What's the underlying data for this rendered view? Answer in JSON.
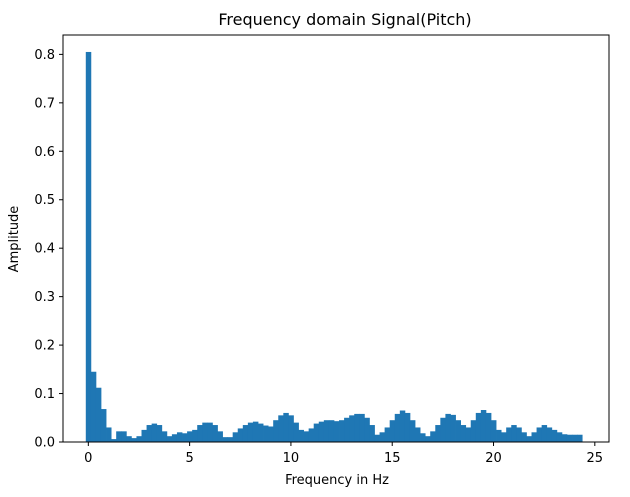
{
  "chart_data": {
    "type": "bar",
    "title": "Frequency domain Signal(Pitch)",
    "xlabel": "Frequency in Hz",
    "ylabel": "Amplitude",
    "xlim": [
      -1.25,
      25.7
    ],
    "ylim": [
      0,
      0.84
    ],
    "xticks": [
      0,
      5,
      10,
      15,
      20,
      25
    ],
    "xtick_labels": [
      "0",
      "5",
      "10",
      "15",
      "20",
      "25"
    ],
    "yticks": [
      0.0,
      0.1,
      0.2,
      0.3,
      0.4,
      0.5,
      0.6,
      0.7,
      0.8
    ],
    "ytick_labels": [
      "0.0",
      "0.1",
      "0.2",
      "0.3",
      "0.4",
      "0.5",
      "0.6",
      "0.7",
      "0.8"
    ],
    "bar_color": "#1f77b4",
    "bar_width": 0.25,
    "x": [
      0.0,
      0.25,
      0.5,
      0.75,
      1.0,
      1.25,
      1.5,
      1.75,
      2.0,
      2.25,
      2.5,
      2.75,
      3.0,
      3.25,
      3.5,
      3.75,
      4.0,
      4.25,
      4.5,
      4.75,
      5.0,
      5.25,
      5.5,
      5.75,
      6.0,
      6.25,
      6.5,
      6.75,
      7.0,
      7.25,
      7.5,
      7.75,
      8.0,
      8.25,
      8.5,
      8.75,
      9.0,
      9.25,
      9.5,
      9.75,
      10.0,
      10.25,
      10.5,
      10.75,
      11.0,
      11.25,
      11.5,
      11.75,
      12.0,
      12.25,
      12.5,
      12.75,
      13.0,
      13.25,
      13.5,
      13.75,
      14.0,
      14.25,
      14.5,
      14.75,
      15.0,
      15.25,
      15.5,
      15.75,
      16.0,
      16.25,
      16.5,
      16.75,
      17.0,
      17.25,
      17.5,
      17.75,
      18.0,
      18.25,
      18.5,
      18.75,
      19.0,
      19.25,
      19.5,
      19.75,
      20.0,
      20.25,
      20.5,
      20.75,
      21.0,
      21.25,
      21.5,
      21.75,
      22.0,
      22.25,
      22.5,
      22.75,
      23.0,
      23.25,
      23.5,
      23.75,
      24.0,
      24.25
    ],
    "values": [
      0.805,
      0.145,
      0.112,
      0.068,
      0.03,
      0.006,
      0.022,
      0.022,
      0.012,
      0.008,
      0.012,
      0.025,
      0.035,
      0.038,
      0.035,
      0.022,
      0.012,
      0.016,
      0.02,
      0.018,
      0.022,
      0.025,
      0.035,
      0.04,
      0.04,
      0.035,
      0.022,
      0.01,
      0.01,
      0.02,
      0.028,
      0.035,
      0.04,
      0.042,
      0.038,
      0.034,
      0.032,
      0.045,
      0.055,
      0.06,
      0.055,
      0.04,
      0.025,
      0.022,
      0.028,
      0.038,
      0.042,
      0.045,
      0.045,
      0.043,
      0.045,
      0.05,
      0.055,
      0.058,
      0.058,
      0.05,
      0.035,
      0.015,
      0.02,
      0.03,
      0.045,
      0.058,
      0.065,
      0.06,
      0.045,
      0.03,
      0.018,
      0.012,
      0.022,
      0.035,
      0.05,
      0.058,
      0.056,
      0.045,
      0.035,
      0.03,
      0.045,
      0.06,
      0.066,
      0.06,
      0.045,
      0.025,
      0.02,
      0.03,
      0.035,
      0.03,
      0.02,
      0.012,
      0.02,
      0.03,
      0.035,
      0.03,
      0.025,
      0.02,
      0.016,
      0.015,
      0.015,
      0.015
    ],
    "grid": false,
    "legend": "none"
  }
}
